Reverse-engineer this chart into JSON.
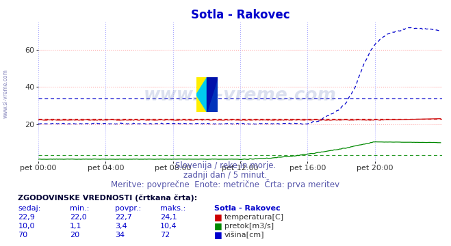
{
  "title": "Sotla - Rakovec",
  "title_color": "#0000cc",
  "title_fontsize": 12,
  "bg_color": "#ffffff",
  "plot_bg_color": "#ffffff",
  "fig_bg_color": "#ffffff",
  "xlim": [
    0,
    288
  ],
  "ylim": [
    0,
    75
  ],
  "yticks": [
    20,
    40,
    60
  ],
  "xtick_labels": [
    "pet 00:00",
    "pet 04:00",
    "pet 08:00",
    "pet 12:00",
    "pet 16:00",
    "pet 20:00"
  ],
  "xtick_positions": [
    0,
    48,
    96,
    144,
    192,
    240
  ],
  "grid_color_h": "#ffaaaa",
  "grid_color_v": "#aaaaff",
  "temp_color": "#cc0000",
  "flow_color": "#008800",
  "height_color": "#0000cc",
  "temp_avg": 22.7,
  "flow_avg": 3.4,
  "height_avg": 34,
  "subtitle1": "Slovenija / reke in morje.",
  "subtitle2": "zadnji dan / 5 minut.",
  "subtitle3": "Meritve: povprečne  Enote: metrične  Črta: prva meritev",
  "footer_title": "ZGODOVINSKE VREDNOSTI (črtkana črta):",
  "col_headers": [
    "sedaj:",
    "min.:",
    "povpr.:",
    "maks.:",
    "Sotla - Rakovec"
  ],
  "row1": [
    "22,9",
    "22,0",
    "22,7",
    "24,1",
    "temperatura[C]"
  ],
  "row2": [
    "10,0",
    "1,1",
    "3,4",
    "10,4",
    "pretok[m3/s]"
  ],
  "row3": [
    "70",
    "20",
    "34",
    "72",
    "višina[cm]"
  ],
  "watermark_text": "www.si-vreme.com",
  "side_text": "www.si-vreme.com"
}
